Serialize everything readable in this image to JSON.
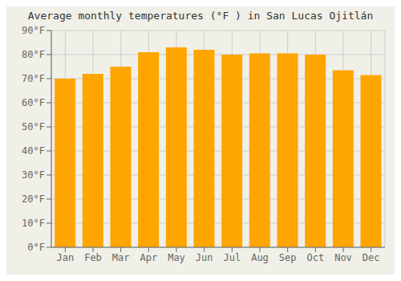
{
  "chart_data": {
    "type": "bar",
    "title": "Average monthly temperatures (°F ) in San Lucas Ojitlán",
    "categories": [
      "Jan",
      "Feb",
      "Mar",
      "Apr",
      "May",
      "Jun",
      "Jul",
      "Aug",
      "Sep",
      "Oct",
      "Nov",
      "Dec"
    ],
    "values": [
      70,
      72,
      75,
      81,
      83,
      82,
      80,
      80.5,
      80.5,
      80,
      73.5,
      71.5
    ],
    "color": "#FFA500",
    "ylim": [
      0,
      90
    ],
    "yticks": [
      {
        "value": 0,
        "label": "0°F"
      },
      {
        "value": 10,
        "label": "10°F"
      },
      {
        "value": 20,
        "label": "20°F"
      },
      {
        "value": 30,
        "label": "30°F"
      },
      {
        "value": 40,
        "label": "40°F"
      },
      {
        "value": 50,
        "label": "50°F"
      },
      {
        "value": 60,
        "label": "60°F"
      },
      {
        "value": 70,
        "label": "70°F"
      },
      {
        "value": 80,
        "label": "80°F"
      },
      {
        "value": 90,
        "label": "90°F"
      }
    ],
    "grid": true
  }
}
